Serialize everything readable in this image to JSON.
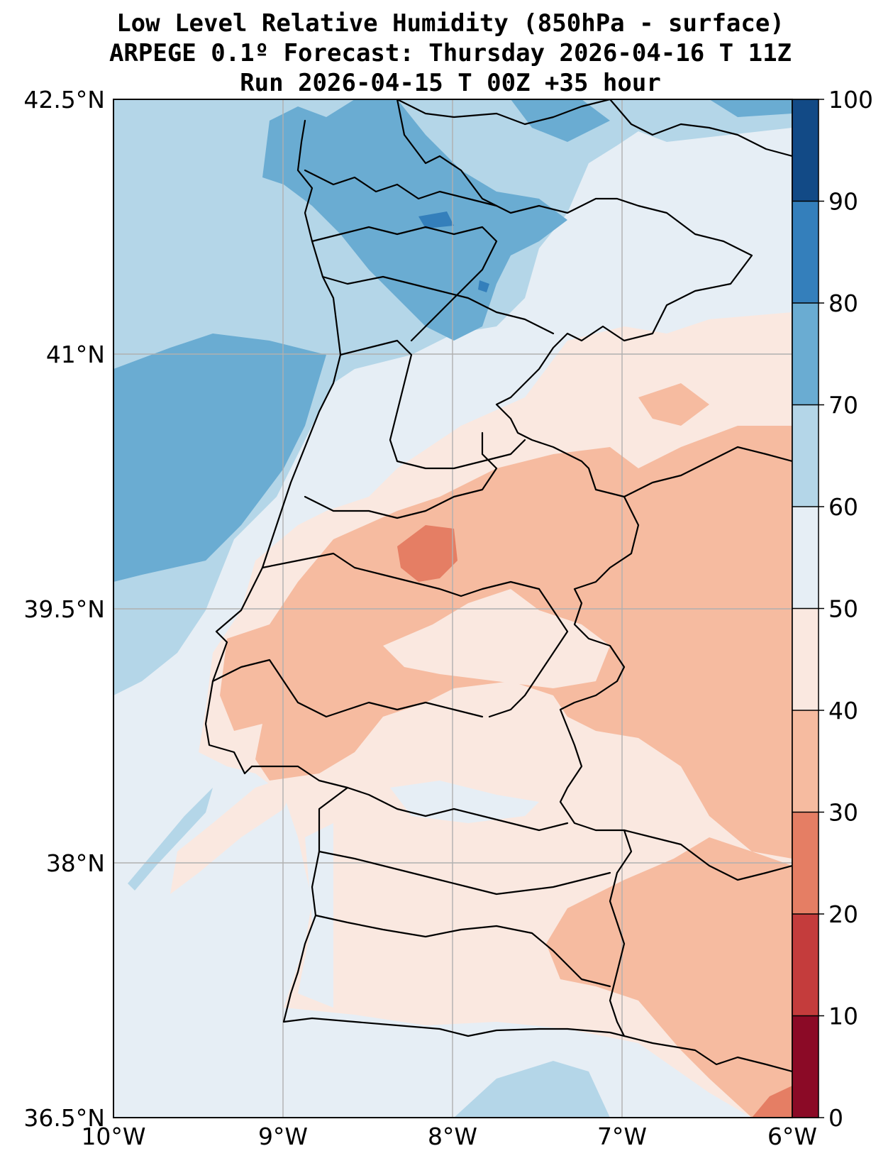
{
  "title": {
    "line1": "Low Level Relative Humidity (850hPa - surface)",
    "line2": "ARPEGE 0.1º Forecast: Thursday 2026-04-16 T 11Z",
    "line3": "Run 2026-04-15 T 00Z +35 hour"
  },
  "map": {
    "lon_range": [
      -10,
      -6
    ],
    "lat_range": [
      36.5,
      42.5
    ],
    "lon_ticks": [
      {
        "value": -10,
        "label": "10°W"
      },
      {
        "value": -9,
        "label": "9°W"
      },
      {
        "value": -8,
        "label": "8°W"
      },
      {
        "value": -7,
        "label": "7°W"
      },
      {
        "value": -6,
        "label": "6°W"
      }
    ],
    "lat_ticks": [
      {
        "value": 42.5,
        "label": "42.5°N"
      },
      {
        "value": 41,
        "label": "41°N"
      },
      {
        "value": 39.5,
        "label": "39.5°N"
      },
      {
        "value": 38,
        "label": "38°N"
      },
      {
        "value": 36.5,
        "label": "36.5°N"
      }
    ]
  },
  "colorbar": {
    "levels": [
      {
        "value": 0,
        "label": "0"
      },
      {
        "value": 10,
        "label": "10"
      },
      {
        "value": 20,
        "label": "20"
      },
      {
        "value": 30,
        "label": "30"
      },
      {
        "value": 40,
        "label": "40"
      },
      {
        "value": 50,
        "label": "50"
      },
      {
        "value": 60,
        "label": "60"
      },
      {
        "value": 70,
        "label": "70"
      },
      {
        "value": 80,
        "label": "80"
      },
      {
        "value": 90,
        "label": "90"
      },
      {
        "value": 100,
        "label": "100"
      }
    ],
    "colors": [
      "#8b0a26",
      "#c43c3c",
      "#e57e64",
      "#f6bba0",
      "#fae8e0",
      "#e6eef5",
      "#b4d6e8",
      "#6aacd2",
      "#347fbb",
      "#124a86"
    ]
  }
}
